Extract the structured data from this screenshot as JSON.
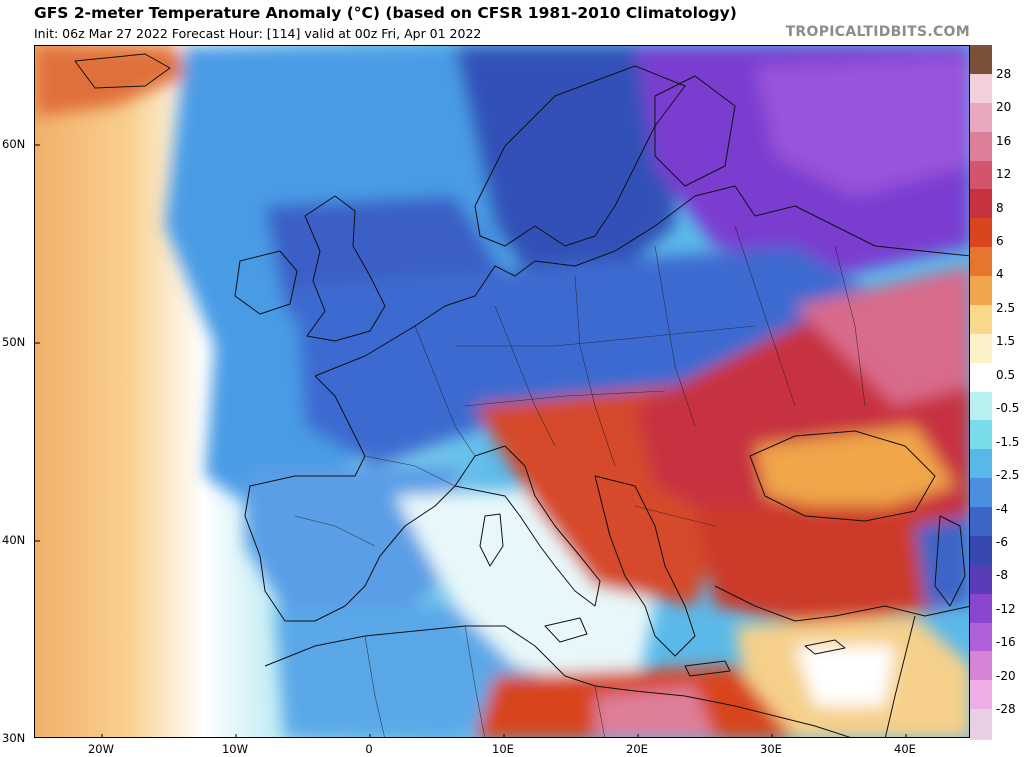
{
  "header": {
    "title": "GFS 2-meter Temperature Anomaly (°C) (based on CFSR 1981-2010 Climatology)",
    "subtitle": "Init: 06z Mar 27 2022   Forecast Hour: [114]   valid at 00z Fri, Apr 01 2022",
    "brand": "TROPICALTIDBITS.COM"
  },
  "map": {
    "lat_labels": [
      "60N",
      "50N",
      "40N",
      "30N"
    ],
    "lon_labels": [
      "20W",
      "10W",
      "0",
      "10E",
      "20E",
      "30E",
      "40E"
    ],
    "extent": {
      "lon_min": -25,
      "lon_max": 45,
      "lat_min": 30,
      "lat_max": 65
    }
  },
  "colorbar": {
    "labels": [
      "28",
      "20",
      "16",
      "12",
      "8",
      "6",
      "4",
      "2.5",
      "1.5",
      "0.5",
      "-0.5",
      "-1.5",
      "-2.5",
      "-4",
      "-6",
      "-8",
      "-12",
      "-16",
      "-20",
      "-28"
    ],
    "colors": [
      "#7a5038",
      "#f2d0da",
      "#e8a8c0",
      "#de7f99",
      "#d4546c",
      "#c8323f",
      "#d8451f",
      "#e6762e",
      "#f0a64a",
      "#f8d88a",
      "#fbf0c8",
      "#ffffff",
      "#b8f0f0",
      "#78dcea",
      "#58b8ea",
      "#4a8fe0",
      "#3d65c8",
      "#3648b0",
      "#5a3cb8",
      "#8a46d0",
      "#b060d8",
      "#d684d6",
      "#f0aee6",
      "#e8cfe4"
    ]
  }
}
